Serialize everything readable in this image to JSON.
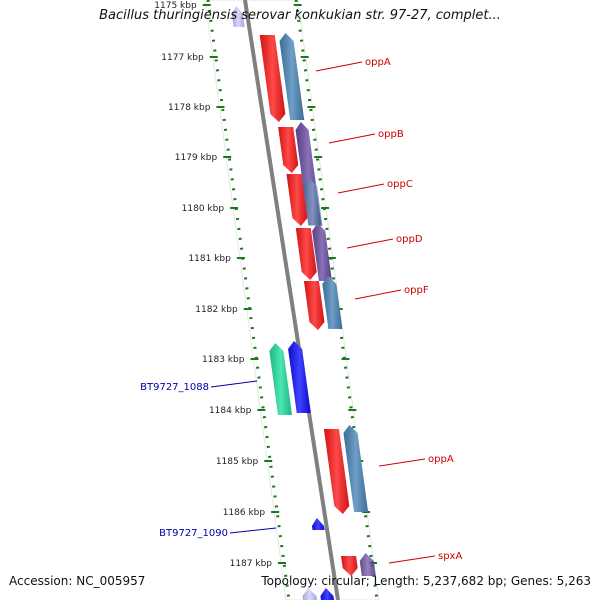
{
  "title": "Bacillus thuringiensis serovar konkukian str. 97-27, complet...",
  "footer": {
    "accession": "Accession: NC_005957",
    "summary": "Topology: circular; Length: 5,237,682 bp; Genes: 5,263"
  },
  "colors": {
    "ruler": "#1a7a1a",
    "backbone": "#808080",
    "gene_red": "#ff1a1a",
    "gene_steelblue": "#4a86b8",
    "gene_purple": "#5a3a9a",
    "gene_blue": "#1010ff",
    "gene_green": "#20e0a0",
    "label_red": "#cc0000",
    "label_blue": "#0000aa",
    "pale_blue": "#c8c8ff"
  },
  "ruler_ticks": [
    {
      "label": "1175 kbp"
    },
    {
      "label": "1177 kbp"
    },
    {
      "label": "1178 kbp"
    },
    {
      "label": "1179 kbp"
    },
    {
      "label": "1180 kbp"
    },
    {
      "label": "1181 kbp"
    },
    {
      "label": "1182 kbp"
    },
    {
      "label": "1183 kbp"
    },
    {
      "label": "1184 kbp"
    },
    {
      "label": "1185 kbp"
    },
    {
      "label": "1186 kbp"
    },
    {
      "label": "1187 kbp"
    }
  ],
  "gene_labels": [
    {
      "text": "oppA"
    },
    {
      "text": "oppB"
    },
    {
      "text": "oppC"
    },
    {
      "text": "oppD"
    },
    {
      "text": "oppF"
    },
    {
      "text": "BT9727_1088"
    },
    {
      "text": "oppA"
    },
    {
      "text": "BT9727_1090"
    },
    {
      "text": "spxA"
    }
  ]
}
